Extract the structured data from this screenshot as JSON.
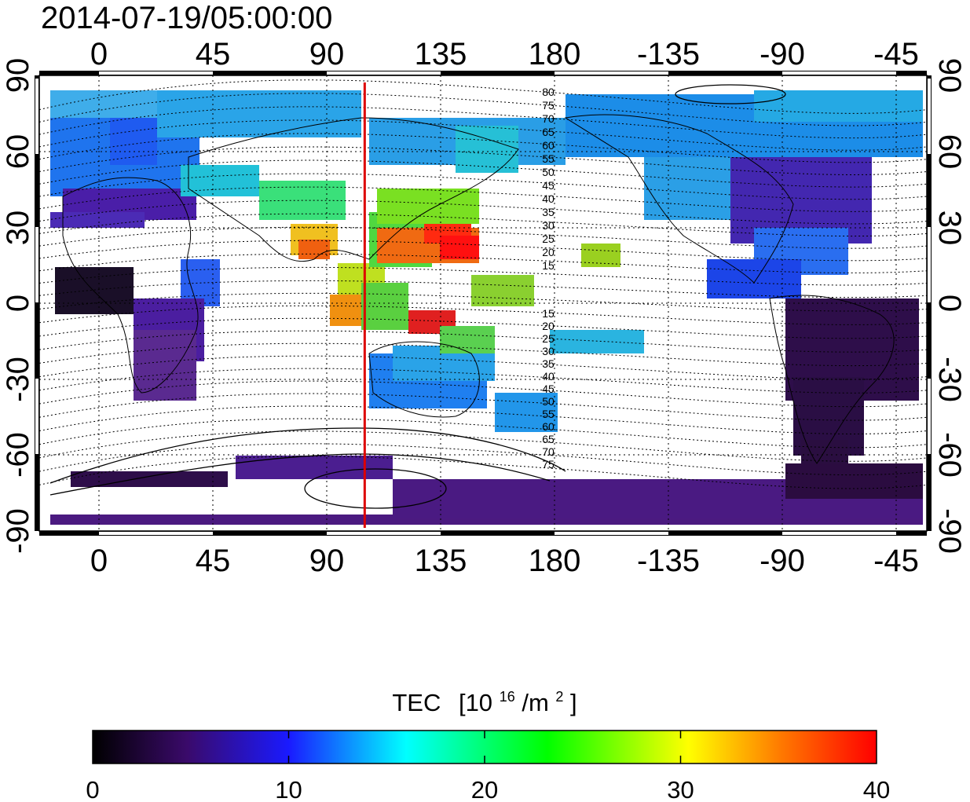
{
  "title": "2014-07-19/05:00:00",
  "map": {
    "x_tick_labels": [
      "0",
      "45",
      "90",
      "135",
      "180",
      "-135",
      "-90",
      "-45"
    ],
    "y_tick_labels": [
      "90",
      "60",
      "30",
      "0",
      "-30",
      "-60",
      "-90"
    ],
    "marker_longitude": 105,
    "marker_color": "#dd0000",
    "magnetic_latitude_labels_north": [
      "80",
      "75",
      "70",
      "65",
      "60",
      "55",
      "50",
      "45",
      "40",
      "35",
      "30",
      "25",
      "20",
      "15"
    ],
    "magnetic_latitude_labels_south": [
      "15",
      "20",
      "25",
      "30",
      "35",
      "40",
      "45",
      "50",
      "55",
      "60",
      "65",
      "70",
      "75"
    ]
  },
  "colorbar": {
    "label": "TEC",
    "unit_base": "[10",
    "unit_exp": "16",
    "unit_mid": "/m",
    "unit_exp2": "2",
    "unit_close": "]",
    "ticks": [
      "0",
      "10",
      "20",
      "30",
      "40"
    ],
    "stops": [
      "#000000",
      "#3a0a6a",
      "#1a1aff",
      "#00ffff",
      "#00ff00",
      "#ffff00",
      "#ff0000"
    ]
  }
}
